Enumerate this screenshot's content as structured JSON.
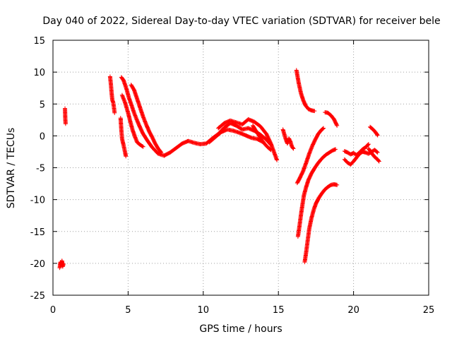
{
  "chart_data": {
    "type": "scatter",
    "title": "Day 040 of 2022, Sidereal Day-to-day VTEC variation (SDTVAR) for receiver bele",
    "xlabel": "GPS time / hours",
    "ylabel": "SDTVAR / TECUs",
    "xlim": [
      0,
      25
    ],
    "ylim": [
      -25,
      15
    ],
    "x_ticks": [
      0,
      5,
      10,
      15,
      20,
      25
    ],
    "y_ticks": [
      -25,
      -20,
      -15,
      -10,
      -5,
      0,
      5,
      10,
      15
    ],
    "grid": true,
    "marker": "+",
    "series": [
      {
        "name": "SDTVAR",
        "color": "#ff0000",
        "segments": [
          [
            [
              0.45,
              -20.7
            ],
            [
              0.5,
              -19.8
            ],
            [
              0.55,
              -20.3
            ],
            [
              0.6,
              -19.6
            ],
            [
              0.65,
              -20.5
            ],
            [
              0.7,
              -20.1
            ]
          ],
          [
            [
              0.8,
              4.3
            ],
            [
              0.82,
              2.7
            ],
            [
              0.84,
              1.9
            ]
          ],
          [
            [
              3.8,
              9.3
            ],
            [
              3.85,
              8.2
            ],
            [
              3.9,
              6.8
            ],
            [
              3.95,
              5.6
            ],
            [
              4.0,
              5.3
            ],
            [
              4.05,
              4.6
            ],
            [
              4.1,
              3.6
            ]
          ],
          [
            [
              4.55,
              9.2
            ],
            [
              4.7,
              8.7
            ],
            [
              4.9,
              7.3
            ],
            [
              5.05,
              6.0
            ],
            [
              5.2,
              5.0
            ],
            [
              5.4,
              3.6
            ],
            [
              5.6,
              2.4
            ],
            [
              5.8,
              1.3
            ],
            [
              6.0,
              0.3
            ],
            [
              6.3,
              -0.8
            ],
            [
              6.6,
              -1.8
            ],
            [
              7.0,
              -2.8
            ],
            [
              7.4,
              -3.1
            ]
          ],
          [
            [
              4.5,
              2.8
            ],
            [
              4.55,
              0.9
            ],
            [
              4.6,
              -0.5
            ],
            [
              4.7,
              -1.5
            ],
            [
              4.8,
              -2.6
            ],
            [
              4.85,
              -3.2
            ]
          ],
          [
            [
              4.6,
              6.4
            ],
            [
              4.8,
              5.2
            ],
            [
              5.0,
              3.6
            ],
            [
              5.15,
              2.2
            ],
            [
              5.3,
              0.9
            ],
            [
              5.45,
              -0.1
            ],
            [
              5.6,
              -1.0
            ],
            [
              5.8,
              -1.4
            ],
            [
              6.0,
              -1.7
            ]
          ],
          [
            [
              5.2,
              8.0
            ],
            [
              5.4,
              7.2
            ],
            [
              5.6,
              5.8
            ],
            [
              5.8,
              4.4
            ],
            [
              6.0,
              3.0
            ],
            [
              6.2,
              1.8
            ],
            [
              6.4,
              0.7
            ],
            [
              6.6,
              -0.2
            ],
            [
              6.8,
              -1.2
            ],
            [
              7.0,
              -2.0
            ],
            [
              7.2,
              -2.6
            ]
          ],
          [
            [
              7.4,
              -3.1
            ],
            [
              7.8,
              -2.6
            ],
            [
              8.2,
              -1.9
            ],
            [
              8.6,
              -1.2
            ],
            [
              9.0,
              -0.8
            ],
            [
              9.4,
              -1.1
            ],
            [
              9.8,
              -1.3
            ],
            [
              10.2,
              -1.2
            ],
            [
              10.6,
              -0.4
            ],
            [
              11.0,
              0.3
            ],
            [
              11.4,
              1.3
            ],
            [
              11.8,
              2.0
            ],
            [
              12.2,
              1.6
            ],
            [
              12.6,
              1.0
            ],
            [
              13.0,
              1.2
            ],
            [
              13.4,
              0.8
            ],
            [
              13.8,
              0.2
            ],
            [
              14.2,
              -0.6
            ],
            [
              14.5,
              -1.4
            ]
          ],
          [
            [
              10.4,
              -1.0
            ],
            [
              10.8,
              -0.2
            ],
            [
              11.2,
              0.6
            ],
            [
              11.6,
              1.0
            ],
            [
              12.0,
              0.8
            ],
            [
              12.4,
              0.5
            ],
            [
              12.8,
              0.1
            ],
            [
              13.2,
              -0.3
            ],
            [
              13.6,
              -0.5
            ],
            [
              14.0,
              -1.0
            ]
          ],
          [
            [
              11.0,
              1.2
            ],
            [
              11.4,
              2.0
            ],
            [
              11.8,
              2.4
            ],
            [
              12.2,
              2.1
            ],
            [
              12.6,
              1.8
            ],
            [
              13.0,
              2.6
            ],
            [
              13.4,
              2.2
            ],
            [
              13.8,
              1.5
            ],
            [
              14.2,
              0.3
            ],
            [
              14.5,
              -1.2
            ],
            [
              14.7,
              -2.5
            ],
            [
              14.9,
              -3.8
            ]
          ],
          [
            [
              13.3,
              1.6
            ],
            [
              13.5,
              0.8
            ],
            [
              13.7,
              0.1
            ],
            [
              13.9,
              -0.7
            ],
            [
              14.1,
              -1.3
            ],
            [
              14.3,
              -1.8
            ],
            [
              14.5,
              -2.2
            ]
          ],
          [
            [
              15.3,
              1.0
            ],
            [
              15.4,
              0.2
            ],
            [
              15.5,
              -0.6
            ],
            [
              15.6,
              -1.2
            ],
            [
              15.7,
              -0.4
            ],
            [
              15.8,
              -0.9
            ],
            [
              15.9,
              -1.7
            ],
            [
              16.0,
              -2.0
            ]
          ],
          [
            [
              16.2,
              10.3
            ],
            [
              16.35,
              8.3
            ],
            [
              16.5,
              6.7
            ],
            [
              16.65,
              5.6
            ],
            [
              16.8,
              4.8
            ],
            [
              17.0,
              4.2
            ],
            [
              17.2,
              4.0
            ],
            [
              17.4,
              3.9
            ]
          ],
          [
            [
              16.25,
              -7.4
            ],
            [
              16.45,
              -6.5
            ],
            [
              16.65,
              -5.5
            ],
            [
              16.85,
              -4.2
            ],
            [
              17.05,
              -2.8
            ],
            [
              17.25,
              -1.6
            ],
            [
              17.45,
              -0.6
            ],
            [
              17.65,
              0.3
            ],
            [
              17.85,
              0.9
            ],
            [
              18.0,
              1.2
            ]
          ],
          [
            [
              16.3,
              -15.8
            ],
            [
              16.4,
              -14.2
            ],
            [
              16.5,
              -12.4
            ],
            [
              16.6,
              -10.8
            ],
            [
              16.7,
              -9.3
            ],
            [
              16.85,
              -8.0
            ],
            [
              17.0,
              -6.9
            ],
            [
              17.2,
              -5.9
            ],
            [
              17.4,
              -5.1
            ],
            [
              17.6,
              -4.4
            ],
            [
              17.8,
              -3.8
            ],
            [
              18.0,
              -3.3
            ],
            [
              18.2,
              -2.9
            ],
            [
              18.4,
              -2.6
            ],
            [
              18.6,
              -2.3
            ],
            [
              18.8,
              -2.1
            ]
          ],
          [
            [
              16.75,
              -19.8
            ],
            [
              16.85,
              -18.2
            ],
            [
              16.95,
              -16.4
            ],
            [
              17.05,
              -14.6
            ],
            [
              17.2,
              -12.9
            ],
            [
              17.35,
              -11.6
            ],
            [
              17.5,
              -10.6
            ],
            [
              17.7,
              -9.7
            ],
            [
              17.9,
              -9.0
            ],
            [
              18.1,
              -8.4
            ],
            [
              18.3,
              -8.0
            ],
            [
              18.5,
              -7.7
            ],
            [
              18.7,
              -7.6
            ],
            [
              18.9,
              -7.7
            ]
          ],
          [
            [
              18.1,
              3.7
            ],
            [
              18.3,
              3.6
            ],
            [
              18.5,
              3.2
            ],
            [
              18.7,
              2.6
            ],
            [
              18.9,
              1.6
            ]
          ],
          [
            [
              19.4,
              -2.4
            ],
            [
              19.6,
              -2.6
            ],
            [
              19.8,
              -2.9
            ],
            [
              20.0,
              -2.7
            ],
            [
              20.2,
              -3.0
            ],
            [
              20.4,
              -2.6
            ],
            [
              20.6,
              -2.1
            ],
            [
              20.8,
              -1.8
            ],
            [
              21.0,
              -1.3
            ]
          ],
          [
            [
              19.4,
              -3.7
            ],
            [
              19.6,
              -4.2
            ],
            [
              19.8,
              -4.5
            ],
            [
              20.0,
              -4.0
            ],
            [
              20.2,
              -3.4
            ],
            [
              20.4,
              -2.8
            ],
            [
              20.6,
              -2.5
            ],
            [
              20.8,
              -2.6
            ],
            [
              21.0,
              -2.8
            ],
            [
              21.2,
              -2.5
            ],
            [
              21.4,
              -2.2
            ],
            [
              21.6,
              -2.6
            ]
          ],
          [
            [
              21.0,
              -2.0
            ],
            [
              21.2,
              -2.7
            ],
            [
              21.4,
              -3.3
            ],
            [
              21.6,
              -3.7
            ],
            [
              21.7,
              -4.0
            ]
          ],
          [
            [
              21.1,
              1.4
            ],
            [
              21.3,
              1.0
            ],
            [
              21.45,
              0.6
            ],
            [
              21.6,
              0.1
            ]
          ]
        ]
      }
    ]
  }
}
